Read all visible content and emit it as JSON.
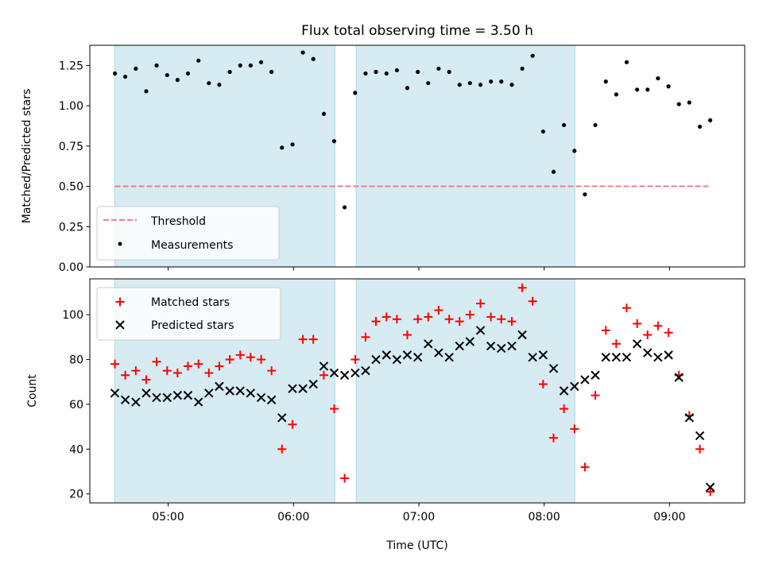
{
  "chart_data": [
    {
      "type": "scatter",
      "title": "Flux total observing time = 3.50 h",
      "ylabel": "Matched/Predicted stars",
      "xlim": [
        4.375,
        9.6
      ],
      "ylim": [
        0.0,
        1.375
      ],
      "xticks": [
        5,
        6,
        7,
        8,
        9
      ],
      "yticks": [
        0.0,
        0.25,
        0.5,
        0.75,
        1.0,
        1.25
      ],
      "ytick_labels": [
        "0.00",
        "0.25",
        "0.50",
        "0.75",
        "1.00",
        "1.25"
      ],
      "shaded_intervals": [
        [
          4.575,
          6.33
        ],
        [
          6.5,
          8.245
        ]
      ],
      "threshold": {
        "name": "Threshold",
        "y": 0.5,
        "x_range": [
          4.575,
          9.33
        ],
        "color": "#f08080"
      },
      "legend": {
        "position": "lower-left",
        "entries": [
          "Threshold",
          "Measurements"
        ]
      },
      "series": [
        {
          "name": "Measurements",
          "marker": "dot",
          "color": "#000000",
          "x": [
            4.575,
            4.658,
            4.742,
            4.825,
            4.908,
            4.992,
            5.075,
            5.158,
            5.242,
            5.325,
            5.408,
            5.492,
            5.575,
            5.658,
            5.742,
            5.825,
            5.908,
            5.992,
            6.075,
            6.158,
            6.242,
            6.325,
            6.408,
            6.492,
            6.575,
            6.658,
            6.742,
            6.825,
            6.908,
            6.992,
            7.075,
            7.158,
            7.242,
            7.325,
            7.408,
            7.492,
            7.575,
            7.658,
            7.742,
            7.825,
            7.908,
            7.992,
            8.075,
            8.158,
            8.242,
            8.325,
            8.408,
            8.492,
            8.575,
            8.658,
            8.742,
            8.825,
            8.908,
            8.992,
            9.075,
            9.158,
            9.242,
            9.325
          ],
          "y": [
            1.2,
            1.18,
            1.23,
            1.09,
            1.25,
            1.19,
            1.16,
            1.2,
            1.28,
            1.14,
            1.13,
            1.21,
            1.25,
            1.25,
            1.27,
            1.21,
            0.74,
            0.76,
            1.33,
            1.29,
            0.95,
            0.78,
            0.37,
            1.08,
            1.2,
            1.21,
            1.2,
            1.22,
            1.11,
            1.21,
            1.14,
            1.23,
            1.21,
            1.13,
            1.14,
            1.13,
            1.15,
            1.15,
            1.13,
            1.23,
            1.31,
            0.84,
            0.59,
            0.88,
            0.72,
            0.45,
            0.88,
            1.15,
            1.07,
            1.27,
            1.1,
            1.1,
            1.17,
            1.12,
            1.01,
            1.02,
            0.87,
            0.91
          ]
        }
      ]
    },
    {
      "type": "scatter",
      "xlabel": "Time (UTC)",
      "ylabel": "Count",
      "xlim": [
        4.375,
        9.6
      ],
      "ylim": [
        16,
        116
      ],
      "xticks": [
        5,
        6,
        7,
        8,
        9
      ],
      "xtick_labels": [
        "05:00",
        "06:00",
        "07:00",
        "08:00",
        "09:00"
      ],
      "yticks": [
        20,
        40,
        60,
        80,
        100
      ],
      "ytick_labels": [
        "20",
        "40",
        "60",
        "80",
        "100"
      ],
      "shaded_intervals": [
        [
          4.575,
          6.33
        ],
        [
          6.5,
          8.245
        ]
      ],
      "legend": {
        "position": "top-left",
        "entries": [
          "Matched stars",
          "Predicted stars"
        ]
      },
      "x": [
        4.575,
        4.658,
        4.742,
        4.825,
        4.908,
        4.992,
        5.075,
        5.158,
        5.242,
        5.325,
        5.408,
        5.492,
        5.575,
        5.658,
        5.742,
        5.825,
        5.908,
        5.992,
        6.075,
        6.158,
        6.242,
        6.325,
        6.408,
        6.492,
        6.575,
        6.658,
        6.742,
        6.825,
        6.908,
        6.992,
        7.075,
        7.158,
        7.242,
        7.325,
        7.408,
        7.492,
        7.575,
        7.658,
        7.742,
        7.825,
        7.908,
        7.992,
        8.075,
        8.158,
        8.242,
        8.325,
        8.408,
        8.492,
        8.575,
        8.658,
        8.742,
        8.825,
        8.908,
        8.992,
        9.075,
        9.158,
        9.242,
        9.325
      ],
      "series": [
        {
          "name": "Matched stars",
          "marker": "plus",
          "color": "#ff0000",
          "values": [
            78,
            73,
            75,
            71,
            79,
            75,
            74,
            77,
            78,
            74,
            77,
            80,
            82,
            81,
            80,
            75,
            40,
            51,
            89,
            89,
            73,
            58,
            27,
            80,
            90,
            97,
            99,
            98,
            91,
            98,
            99,
            102,
            98,
            97,
            100,
            105,
            99,
            98,
            97,
            112,
            106,
            69,
            45,
            58,
            49,
            32,
            64,
            93,
            87,
            103,
            96,
            91,
            95,
            92,
            73,
            55,
            40,
            21
          ]
        },
        {
          "name": "Predicted stars",
          "marker": "x",
          "color": "#000000",
          "values": [
            65,
            62,
            61,
            65,
            63,
            63,
            64,
            64,
            61,
            65,
            68,
            66,
            66,
            65,
            63,
            62,
            54,
            67,
            67,
            69,
            77,
            74,
            73,
            74,
            75,
            80,
            82,
            80,
            82,
            81,
            87,
            83,
            81,
            86,
            88,
            93,
            86,
            85,
            86,
            91,
            81,
            82,
            76,
            66,
            68,
            71,
            73,
            81,
            81,
            81,
            87,
            83,
            81,
            82,
            72,
            54,
            46,
            23
          ]
        }
      ]
    }
  ]
}
